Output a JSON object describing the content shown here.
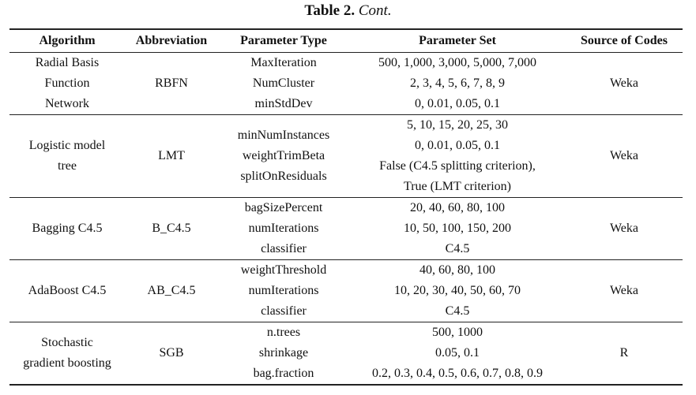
{
  "caption": {
    "label": "Table 2.",
    "cont": "Cont."
  },
  "headers": [
    "Algorithm",
    "Abbreviation",
    "Parameter Type",
    "Parameter Set",
    "Source of Codes"
  ],
  "rows": [
    {
      "algorithm": [
        "Radial Basis",
        "Function",
        "Network"
      ],
      "abbreviation": "RBFN",
      "parameter_types": [
        "MaxIteration",
        "NumCluster",
        "minStdDev"
      ],
      "parameter_sets": [
        "500, 1,000, 3,000, 5,000, 7,000",
        "2, 3, 4, 5, 6, 7, 8, 9",
        "0, 0.01, 0.05, 0.1"
      ],
      "source": "Weka"
    },
    {
      "algorithm": [
        "Logistic model",
        "tree"
      ],
      "abbreviation": "LMT",
      "parameter_types": [
        "minNumInstances",
        "weightTrimBeta",
        "splitOnResiduals"
      ],
      "parameter_sets": [
        "5, 10, 15, 20, 25, 30",
        "0, 0.01, 0.05, 0.1",
        "False (C4.5 splitting criterion),",
        "True (LMT criterion)"
      ],
      "source": "Weka"
    },
    {
      "algorithm": [
        "Bagging C4.5"
      ],
      "abbreviation": "B_C4.5",
      "parameter_types": [
        "bagSizePercent",
        "numIterations",
        "classifier"
      ],
      "parameter_sets": [
        "20, 40, 60, 80, 100",
        "10, 50, 100, 150, 200",
        "C4.5"
      ],
      "source": "Weka"
    },
    {
      "algorithm": [
        "AdaBoost C4.5"
      ],
      "abbreviation": "AB_C4.5",
      "parameter_types": [
        "weightThreshold",
        "numIterations",
        "classifier"
      ],
      "parameter_sets": [
        "40, 60, 80, 100",
        "10, 20, 30, 40, 50, 60, 70",
        "C4.5"
      ],
      "source": "Weka"
    },
    {
      "algorithm": [
        "Stochastic",
        "gradient boosting"
      ],
      "abbreviation": "SGB",
      "parameter_types": [
        "n.trees",
        "shrinkage",
        "bag.fraction"
      ],
      "parameter_sets": [
        "500, 1000",
        "0.05, 0.1",
        "0.2, 0.3, 0.4, 0.5, 0.6, 0.7, 0.8, 0.9"
      ],
      "source": "R"
    }
  ]
}
